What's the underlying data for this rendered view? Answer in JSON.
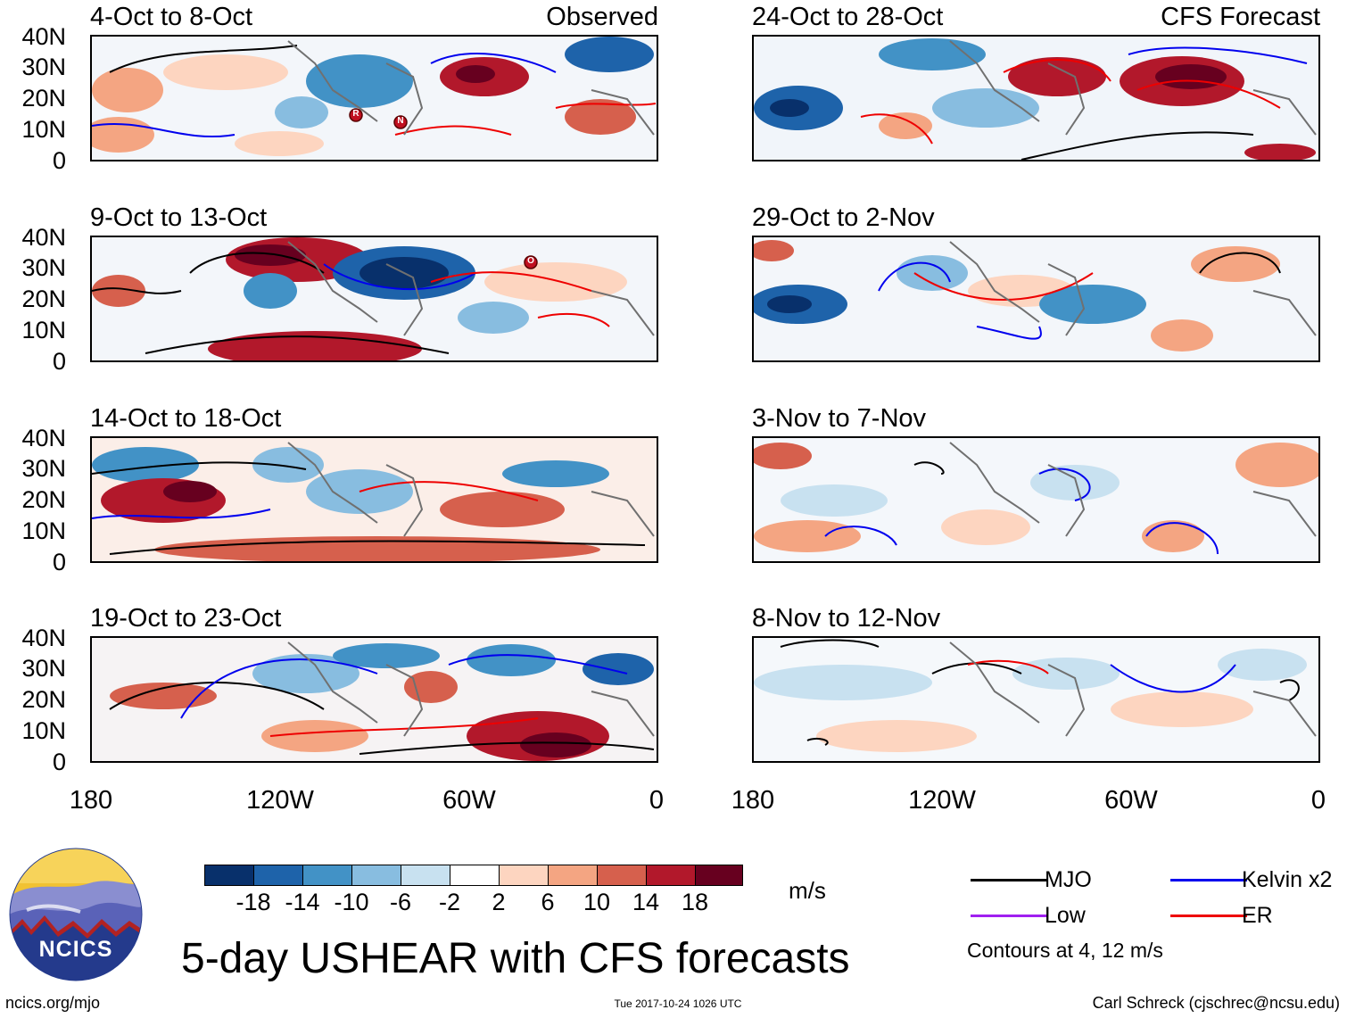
{
  "panels": {
    "left_label": "Observed",
    "right_label": "CFS Forecast",
    "left": [
      {
        "title": "4-Oct to 8-Oct"
      },
      {
        "title": "9-Oct to 13-Oct"
      },
      {
        "title": "14-Oct to 18-Oct"
      },
      {
        "title": "19-Oct to 23-Oct"
      }
    ],
    "right": [
      {
        "title": "24-Oct to 28-Oct"
      },
      {
        "title": "29-Oct to 2-Nov"
      },
      {
        "title": "3-Nov to 7-Nov"
      },
      {
        "title": "8-Nov to 12-Nov"
      }
    ]
  },
  "axes": {
    "lat_ticks": [
      "40N",
      "30N",
      "20N",
      "10N",
      "0"
    ],
    "lon_ticks": [
      "180",
      "120W",
      "60W",
      "0"
    ]
  },
  "storm_markers": [
    {
      "letter": "R"
    },
    {
      "letter": "N"
    },
    {
      "letter": "O"
    }
  ],
  "colorbar": {
    "colors": [
      "#08306b",
      "#1e63aa",
      "#4292c6",
      "#88bde0",
      "#c8e1f0",
      "#ffffff",
      "#fdd5c0",
      "#f4a582",
      "#d6604d",
      "#b2182b",
      "#67001f"
    ],
    "labels": [
      "-18",
      "-14",
      "-10",
      "-6",
      "-2",
      "2",
      "6",
      "10",
      "14",
      "18"
    ],
    "unit": "m/s"
  },
  "legend": {
    "items": [
      {
        "label": "MJO",
        "color": "#000000"
      },
      {
        "label": "Kelvin x2",
        "color": "#0000ee"
      },
      {
        "label": "Low",
        "color": "#a020f0"
      },
      {
        "label": "ER",
        "color": "#ee0000"
      }
    ],
    "note": "Contours at 4, 12 m/s"
  },
  "logo_text": "NCICS",
  "title": "5-day USHEAR with CFS forecasts",
  "footer": {
    "left": "ncics.org/mjo",
    "center": "Tue 2017-10-24 1026 UTC",
    "right": "Carl Schreck (cjschrec@ncsu.edu)"
  }
}
